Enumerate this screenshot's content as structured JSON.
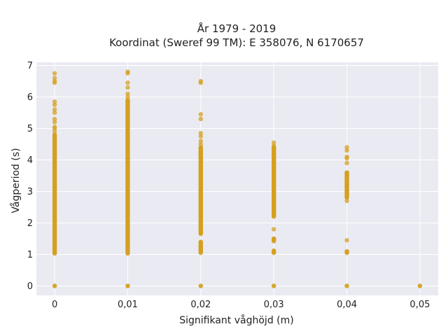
{
  "chart_data": {
    "type": "scatter",
    "title": "År 1979 - 2019",
    "subtitle": "Koordinat (Sweref 99 TM): E 358076, N 6170657",
    "xlabel": "Signifikant våghöjd (m)",
    "ylabel": "Vågperiod (s)",
    "x_ticks": [
      {
        "value": 0,
        "label": "0"
      },
      {
        "value": 0.01,
        "label": "0,01"
      },
      {
        "value": 0.02,
        "label": "0,02"
      },
      {
        "value": 0.03,
        "label": "0,03"
      },
      {
        "value": 0.04,
        "label": "0,04"
      },
      {
        "value": 0.05,
        "label": "0,05"
      }
    ],
    "y_ticks": [
      {
        "value": 0,
        "label": "0"
      },
      {
        "value": 1,
        "label": "1"
      },
      {
        "value": 2,
        "label": "2"
      },
      {
        "value": 3,
        "label": "3"
      },
      {
        "value": 4,
        "label": "4"
      },
      {
        "value": 5,
        "label": "5"
      },
      {
        "value": 6,
        "label": "6"
      },
      {
        "value": 7,
        "label": "7"
      }
    ],
    "xlim": [
      -0.0025,
      0.0525
    ],
    "ylim": [
      -0.3,
      7.1
    ],
    "grid": true,
    "legend": "none",
    "colors": {
      "background": "#EAEAF2",
      "grid": "#FFFFFF",
      "marker": "#D4A020"
    },
    "columns": [
      {
        "x": 0,
        "dense": [
          [
            1.03,
            4.8
          ]
        ],
        "points": [
          0,
          0,
          4.9,
          5.0,
          5.05,
          5.2,
          5.3,
          5.5,
          5.6,
          5.75,
          5.85,
          6.45,
          6.5,
          6.6,
          6.75
        ]
      },
      {
        "x": 0.01,
        "dense": [
          [
            1.03,
            5.9
          ]
        ],
        "points": [
          0,
          0,
          6.0,
          6.1,
          6.3,
          6.45,
          6.75,
          6.8
        ]
      },
      {
        "x": 0.02,
        "dense": [
          [
            1.05,
            1.4
          ],
          [
            1.65,
            4.4
          ]
        ],
        "points": [
          0,
          0,
          4.5,
          4.6,
          4.75,
          4.85,
          5.3,
          5.45,
          6.45,
          6.5
        ]
      },
      {
        "x": 0.03,
        "dense": [
          [
            1.05,
            1.12
          ],
          [
            1.42,
            1.5
          ],
          [
            2.2,
            4.4
          ]
        ],
        "points": [
          0,
          0,
          1.8,
          4.45,
          4.55
        ]
      },
      {
        "x": 0.04,
        "dense": [
          [
            1.05,
            1.1
          ],
          [
            2.8,
            3.6
          ]
        ],
        "points": [
          0,
          0,
          1.45,
          2.7,
          3.9,
          4.05,
          4.1,
          4.3,
          4.4
        ]
      },
      {
        "x": 0.05,
        "dense": [],
        "points": [
          0,
          0
        ]
      }
    ]
  }
}
